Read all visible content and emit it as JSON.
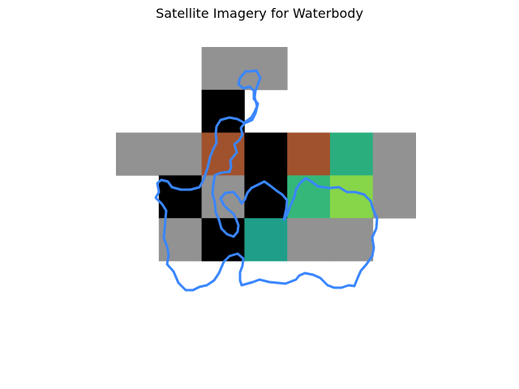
{
  "title": "Satellite Imagery for Waterbody",
  "colors": {
    "background": "#ffffff",
    "outline": "#3a86ff",
    "no_data": "#929292",
    "black": "#000000",
    "brown": "#a0522d",
    "teal": "#2aae7e",
    "green": "#35b779",
    "light_green": "#87d549",
    "dark_teal": "#1f9e89"
  },
  "grid": {
    "rows": 6,
    "cols": 7,
    "cells": [
      [
        null,
        null,
        "no_data",
        "no_data",
        null,
        null,
        null
      ],
      [
        null,
        null,
        "black",
        null,
        null,
        null,
        null
      ],
      [
        "no_data",
        "no_data",
        "brown",
        "black",
        "brown",
        "teal",
        "no_data"
      ],
      [
        null,
        "black",
        "no_data",
        "black",
        "green",
        "light_green",
        "no_data"
      ],
      [
        null,
        "no_data",
        "black",
        "dark_teal",
        "no_data",
        "no_data",
        null
      ],
      [
        null,
        null,
        null,
        null,
        null,
        null,
        null
      ]
    ]
  }
}
